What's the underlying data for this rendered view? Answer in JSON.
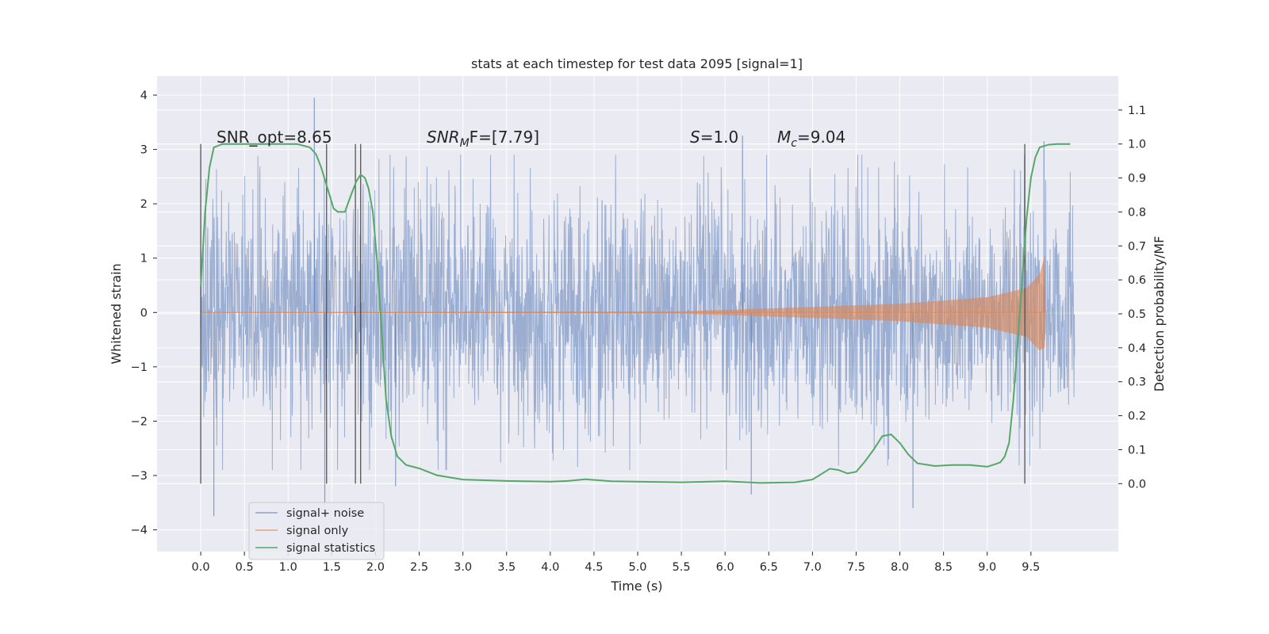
{
  "chart_data": {
    "type": "line",
    "title": "stats at each timestep for test data 2095 [signal=1]",
    "xlabel": "Time (s)",
    "ylabel": "Whitened strain",
    "ylabel_right": "Detection probability/MF",
    "xlim": [
      -0.5,
      10.5
    ],
    "ylim": [
      -4.4,
      4.35
    ],
    "ylim_right": [
      -0.2,
      1.2
    ],
    "x_ticks": [
      "0.0",
      "0.5",
      "1.0",
      "1.5",
      "2.0",
      "2.5",
      "3.0",
      "3.5",
      "4.0",
      "4.5",
      "5.0",
      "5.5",
      "6.0",
      "6.5",
      "7.0",
      "7.5",
      "8.0",
      "8.5",
      "9.0",
      "9.5"
    ],
    "y_ticks": [
      "4",
      "3",
      "2",
      "1",
      "0",
      "−1",
      "−2",
      "−3",
      "−4"
    ],
    "y_ticks_right": [
      "1.1",
      "1.0",
      "0.9",
      "0.8",
      "0.7",
      "0.6",
      "0.5",
      "0.4",
      "0.3",
      "0.2",
      "0.1",
      "0.0"
    ],
    "grid": true,
    "legend_position": "lower-left",
    "annotations": {
      "snr_opt": "SNR_opt=8.65",
      "snr_mf_sym": "SNR",
      "snr_mf_sub": "M",
      "snr_mf_rest": "F=[7.79]",
      "s_sym": "S",
      "s_rest": "=1.0",
      "mc_sym": "M",
      "mc_sub": "c",
      "mc_rest": "=9.04"
    },
    "vertical_markers_s": [
      0.0,
      1.44,
      1.77,
      1.83,
      9.43
    ],
    "series": [
      {
        "name": "signal+ noise",
        "axis": "left",
        "color": "#4c72b0",
        "opacity": 0.5,
        "time_span": [
          0.0,
          10.0
        ],
        "typical_abs": 1.25,
        "outlier_peaks": [
          {
            "x": 0.15,
            "y": -3.75
          },
          {
            "x": 1.3,
            "y": 3.95
          },
          {
            "x": 1.42,
            "y": -3.55
          },
          {
            "x": 2.23,
            "y": -3.2
          },
          {
            "x": 6.3,
            "y": -3.35
          },
          {
            "x": 8.15,
            "y": -3.6
          },
          {
            "x": 9.65,
            "y": 3.15
          },
          {
            "x": 6.2,
            "y": 3.25
          }
        ]
      },
      {
        "name": "signal only",
        "axis": "left",
        "color": "#dd8452",
        "opacity": 0.6,
        "type": "chirp_envelope",
        "envelope": [
          {
            "x": 0.0,
            "y": 0.0
          },
          {
            "x": 5.5,
            "y": 0.02
          },
          {
            "x": 7.0,
            "y": 0.1
          },
          {
            "x": 8.0,
            "y": 0.16
          },
          {
            "x": 9.0,
            "y": 0.28
          },
          {
            "x": 9.45,
            "y": 0.45
          },
          {
            "x": 9.6,
            "y": 0.7
          },
          {
            "x": 9.66,
            "y": 1.05
          },
          {
            "x": 9.67,
            "y": 0.0
          }
        ]
      },
      {
        "name": "signal statistics",
        "axis": "right",
        "color": "#55a868",
        "x": [
          0.0,
          0.05,
          0.1,
          0.15,
          0.25,
          0.4,
          0.6,
          0.9,
          1.1,
          1.25,
          1.32,
          1.38,
          1.45,
          1.52,
          1.57,
          1.65,
          1.72,
          1.78,
          1.83,
          1.88,
          1.92,
          1.97,
          2.02,
          2.07,
          2.12,
          2.18,
          2.25,
          2.35,
          2.5,
          2.7,
          3.0,
          3.5,
          4.0,
          4.2,
          4.4,
          4.7,
          5.0,
          5.5,
          6.0,
          6.4,
          6.8,
          7.0,
          7.1,
          7.2,
          7.3,
          7.4,
          7.5,
          7.6,
          7.7,
          7.8,
          7.9,
          8.0,
          8.1,
          8.2,
          8.4,
          8.6,
          8.8,
          9.0,
          9.1,
          9.15,
          9.2,
          9.25,
          9.3,
          9.35,
          9.4,
          9.45,
          9.5,
          9.55,
          9.6,
          9.7,
          9.8,
          9.95
        ],
        "y": [
          0.58,
          0.8,
          0.93,
          0.99,
          1.0,
          1.0,
          1.0,
          1.0,
          1.0,
          0.99,
          0.97,
          0.93,
          0.87,
          0.81,
          0.8,
          0.8,
          0.85,
          0.89,
          0.91,
          0.9,
          0.87,
          0.8,
          0.65,
          0.45,
          0.25,
          0.14,
          0.08,
          0.055,
          0.045,
          0.025,
          0.012,
          0.008,
          0.006,
          0.008,
          0.013,
          0.007,
          0.006,
          0.004,
          0.007,
          0.002,
          0.004,
          0.012,
          0.028,
          0.044,
          0.04,
          0.03,
          0.035,
          0.065,
          0.1,
          0.14,
          0.145,
          0.12,
          0.085,
          0.06,
          0.052,
          0.055,
          0.055,
          0.05,
          0.058,
          0.063,
          0.08,
          0.12,
          0.25,
          0.42,
          0.6,
          0.78,
          0.9,
          0.96,
          0.99,
          0.998,
          1.0,
          1.0
        ]
      }
    ]
  }
}
